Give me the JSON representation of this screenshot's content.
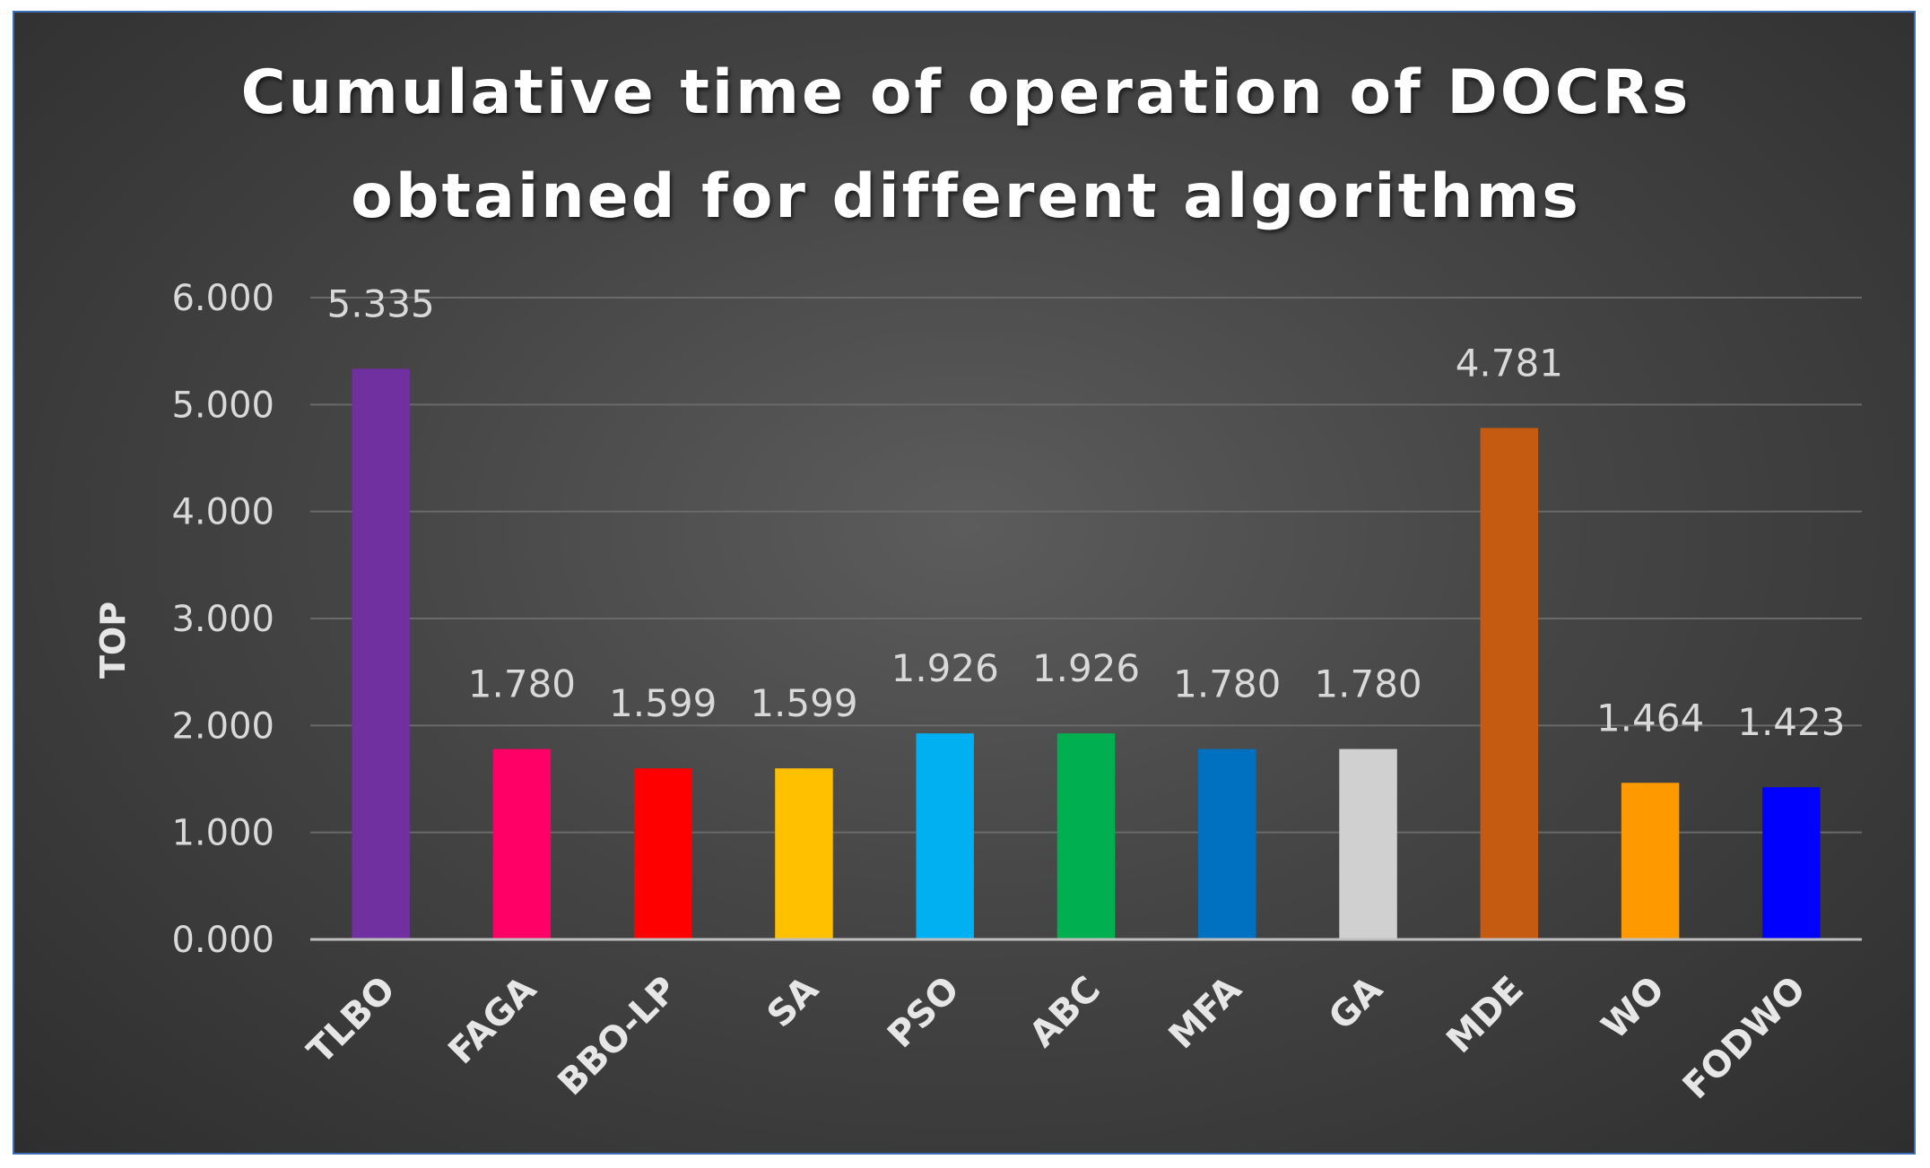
{
  "chart_data": {
    "type": "bar",
    "title_lines": [
      "Cumulative time of operation of DOCRs",
      "obtained for different algorithms"
    ],
    "ylabel": "TOP",
    "xlabel": "",
    "ylim": [
      0,
      6
    ],
    "yticks": [
      "0.000",
      "1.000",
      "2.000",
      "3.000",
      "4.000",
      "5.000",
      "6.000"
    ],
    "grid": true,
    "categories": [
      "TLBO",
      "FAGA",
      "BBO-LP",
      "SA",
      "PSO",
      "ABC",
      "MFA",
      "GA",
      "MDE",
      "WO",
      "FODWO"
    ],
    "values": [
      5.335,
      1.78,
      1.599,
      1.599,
      1.926,
      1.926,
      1.78,
      1.78,
      4.781,
      1.464,
      1.423
    ],
    "value_labels": [
      "5.335",
      "1.780",
      "1.599",
      "1.599",
      "1.926",
      "1.926",
      "1.780",
      "1.780",
      "4.781",
      "1.464",
      "1.423"
    ],
    "colors": [
      "#7030a0",
      "#ff0066",
      "#ff0000",
      "#ffc000",
      "#00b0f0",
      "#00b050",
      "#0070c0",
      "#d0d0d0",
      "#c55a11",
      "#ff9900",
      "#0000ff"
    ]
  }
}
